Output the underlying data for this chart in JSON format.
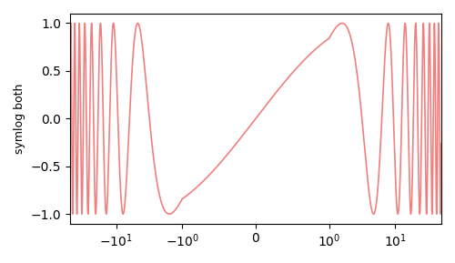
{
  "ylabel": "symlog both",
  "line_color": "#f08080",
  "line_width": 1.2,
  "ylim": [
    -1.1,
    1.1
  ],
  "xlim": [
    -50,
    50
  ],
  "linthresh": 1,
  "background_color": "#ffffff",
  "figsize": [
    5.0,
    2.89
  ],
  "dpi": 100
}
